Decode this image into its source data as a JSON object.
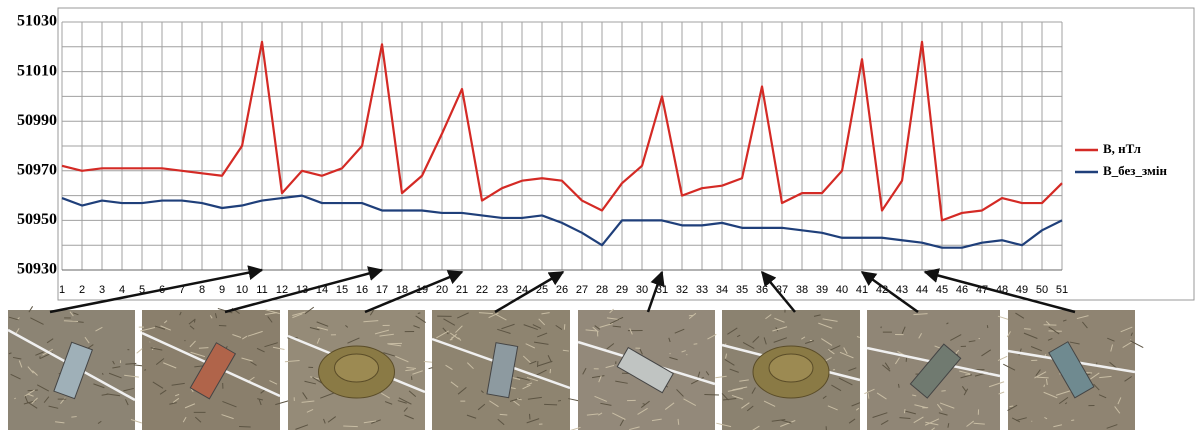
{
  "chart_data": {
    "type": "line",
    "x": [
      1,
      2,
      3,
      4,
      5,
      6,
      7,
      8,
      9,
      10,
      11,
      12,
      13,
      14,
      15,
      16,
      17,
      18,
      19,
      20,
      21,
      22,
      23,
      24,
      25,
      26,
      27,
      28,
      29,
      30,
      31,
      32,
      33,
      34,
      35,
      36,
      37,
      38,
      39,
      40,
      41,
      42,
      43,
      44,
      45,
      46,
      47,
      48,
      49,
      50,
      51
    ],
    "xlim": [
      1,
      51
    ],
    "xticks": [
      1,
      2,
      3,
      4,
      5,
      6,
      7,
      8,
      9,
      10,
      11,
      12,
      13,
      14,
      15,
      16,
      17,
      18,
      19,
      20,
      21,
      22,
      23,
      24,
      25,
      26,
      27,
      28,
      29,
      30,
      31,
      32,
      33,
      34,
      35,
      36,
      37,
      38,
      39,
      40,
      41,
      42,
      43,
      44,
      45,
      46,
      47,
      48,
      49,
      50,
      51
    ],
    "ylim": [
      50930,
      51030
    ],
    "yticks": [
      50930,
      50950,
      50970,
      50990,
      51010,
      51030
    ],
    "minor_yticks": [
      50940,
      50960,
      50980,
      51000,
      51020
    ],
    "grid": true,
    "legend": "right",
    "series": [
      {
        "name": "B, нТл",
        "color": "#d42a25",
        "values": [
          50972,
          50970,
          50971,
          50971,
          50971,
          50971,
          50970,
          50969,
          50968,
          50980,
          51022,
          50961,
          50970,
          50968,
          50971,
          50980,
          51021,
          50961,
          50968,
          50985,
          51003,
          50958,
          50963,
          50966,
          50967,
          50966,
          50958,
          50954,
          50965,
          50972,
          51000,
          50960,
          50963,
          50964,
          50967,
          51004,
          50957,
          50961,
          50961,
          50970,
          51015,
          50954,
          50966,
          51022,
          50950,
          50953,
          50954,
          50959,
          50957,
          50957,
          50965
        ]
      },
      {
        "name": "B_без_змін",
        "color": "#1f3f7a",
        "values": [
          50959,
          50956,
          50958,
          50957,
          50957,
          50958,
          50958,
          50957,
          50955,
          50956,
          50958,
          50959,
          50960,
          50957,
          50957,
          50957,
          50954,
          50954,
          50954,
          50953,
          50953,
          50952,
          50951,
          50951,
          50952,
          50949,
          50945,
          50940,
          50950,
          50950,
          50950,
          50948,
          50948,
          50949,
          50947,
          50947,
          50947,
          50946,
          50945,
          50943,
          50943,
          50943,
          50942,
          50941,
          50939,
          50939,
          50941,
          50942,
          50940,
          50946,
          50950
        ]
      }
    ]
  }
}
